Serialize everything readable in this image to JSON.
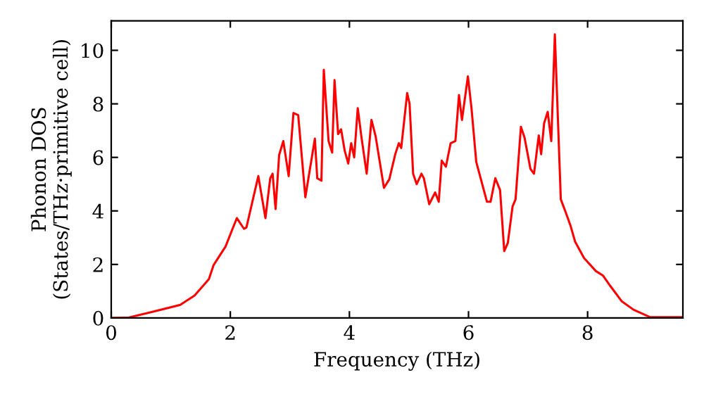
{
  "chart_data": {
    "type": "line",
    "xlabel": "Frequency (THz)",
    "ylabel": "Phonon DOS\n(States/THz·primitive cell)",
    "xlim": [
      0,
      9.6
    ],
    "ylim": [
      0,
      11.1
    ],
    "xticks": [
      0,
      2,
      4,
      6,
      8
    ],
    "yticks": [
      0,
      2,
      4,
      6,
      8,
      10
    ],
    "grid": false,
    "legend": false,
    "series": [
      {
        "color": "#ff0000",
        "x": [
          0,
          0.3,
          0.69,
          1.16,
          1.4,
          1.64,
          1.72,
          1.92,
          2.03,
          2.11,
          2.23,
          2.27,
          2.47,
          2.59,
          2.67,
          2.71,
          2.76,
          2.82,
          2.89,
          2.98,
          3.06,
          3.14,
          3.26,
          3.42,
          3.46,
          3.53,
          3.57,
          3.65,
          3.71,
          3.75,
          3.81,
          3.86,
          3.92,
          3.98,
          4.03,
          4.08,
          4.14,
          4.2,
          4.29,
          4.37,
          4.44,
          4.58,
          4.67,
          4.77,
          4.83,
          4.87,
          4.97,
          5.01,
          5.07,
          5.13,
          5.21,
          5.25,
          5.34,
          5.44,
          5.5,
          5.55,
          5.62,
          5.7,
          5.78,
          5.84,
          5.89,
          5.99,
          6.05,
          6.13,
          6.31,
          6.37,
          6.45,
          6.53,
          6.6,
          6.66,
          6.74,
          6.79,
          6.88,
          6.94,
          7.04,
          7.1,
          7.18,
          7.22,
          7.27,
          7.33,
          7.39,
          7.45,
          7.55,
          7.63,
          7.71,
          7.79,
          7.94,
          8.14,
          8.26,
          8.38,
          8.57,
          8.77,
          9.05,
          9.6
        ],
        "values": [
          0,
          0.02,
          0.23,
          0.49,
          0.84,
          1.45,
          1.98,
          2.67,
          3.29,
          3.73,
          3.33,
          3.38,
          5.3,
          3.73,
          5.22,
          5.39,
          4.07,
          6.09,
          6.61,
          5.3,
          7.66,
          7.58,
          4.51,
          6.7,
          5.22,
          5.13,
          9.27,
          6.61,
          6.18,
          8.89,
          6.87,
          7.05,
          6.26,
          5.77,
          6.53,
          6.0,
          7.84,
          6.79,
          5.39,
          7.4,
          6.79,
          4.86,
          5.18,
          6.12,
          6.53,
          6.35,
          8.4,
          8.01,
          5.39,
          5.0,
          5.39,
          5.22,
          4.25,
          4.69,
          4.34,
          5.88,
          5.65,
          6.53,
          6.61,
          8.33,
          7.4,
          9.03,
          7.84,
          5.83,
          4.34,
          4.34,
          5.22,
          4.78,
          2.5,
          2.8,
          4.17,
          4.43,
          7.14,
          6.75,
          5.57,
          5.39,
          6.82,
          6.12,
          7.28,
          7.7,
          6.61,
          10.6,
          4.43,
          3.96,
          3.47,
          2.85,
          2.24,
          1.75,
          1.58,
          1.2,
          0.63,
          0.31,
          0.03,
          0.03
        ]
      }
    ]
  }
}
